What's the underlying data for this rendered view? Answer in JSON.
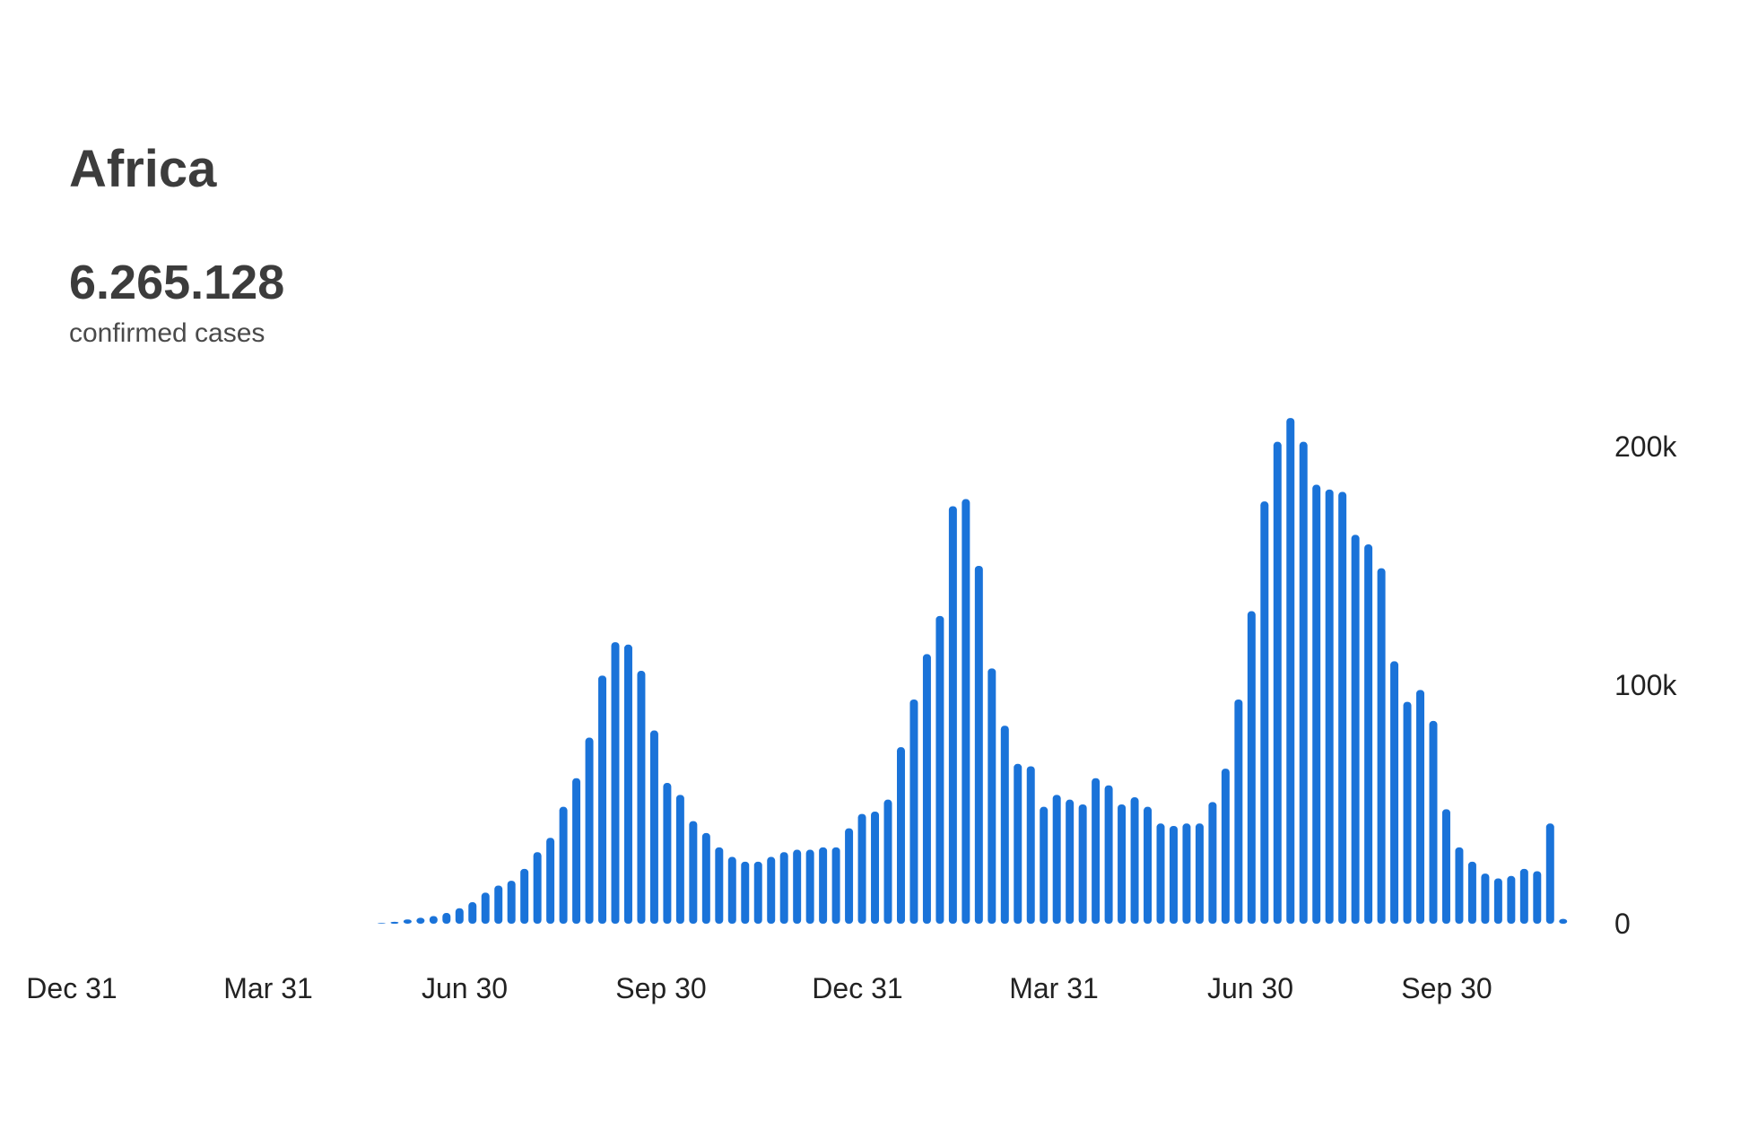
{
  "header": {
    "title": "Africa",
    "total": "6.265.128",
    "total_caption": "confirmed cases"
  },
  "colors": {
    "bar": "#1a73d9",
    "text": "#3c3c3c"
  },
  "chart_data": {
    "type": "bar",
    "title": "",
    "xlabel": "",
    "ylabel": "",
    "x_ticks": [
      "Dec 31",
      "Mar 31",
      "Jun 30",
      "Sep 30",
      "Dec 31",
      "Mar 31",
      "Jun 30",
      "Sep 30"
    ],
    "y_ticks": [
      {
        "value": 0,
        "label": "0"
      },
      {
        "value": 100000,
        "label": "100k"
      },
      {
        "value": 200000,
        "label": "200k"
      }
    ],
    "ylim": [
      0,
      215000
    ],
    "y_axis_position": "right",
    "grid": false,
    "series": [
      {
        "values": [
          0,
          0,
          0,
          0,
          0,
          0,
          0,
          0,
          0,
          0,
          0,
          0,
          0,
          300,
          800,
          1800,
          2500,
          3200,
          4500,
          6500,
          9000,
          13000,
          16000,
          18000,
          23000,
          30000,
          36000,
          49000,
          61000,
          78000,
          104000,
          118000,
          117000,
          106000,
          81000,
          59000,
          54000,
          43000,
          38000,
          32000,
          28000,
          26000,
          26000,
          28000,
          30000,
          31000,
          31000,
          32000,
          32000,
          40000,
          46000,
          47000,
          52000,
          74000,
          94000,
          113000,
          129000,
          175000,
          178000,
          150000,
          107000,
          83000,
          67000,
          66000,
          49000,
          54000,
          52000,
          50000,
          61000,
          58000,
          50000,
          53000,
          49000,
          42000,
          41000,
          42000,
          42000,
          51000,
          65000,
          94000,
          131000,
          177000,
          202000,
          212000,
          202000,
          184000,
          182000,
          181000,
          163000,
          159000,
          149000,
          110000,
          93000,
          98000,
          85000,
          48000,
          32000,
          26000,
          21000,
          19000,
          20000,
          23000,
          22000,
          42000,
          2000
        ]
      }
    ]
  }
}
